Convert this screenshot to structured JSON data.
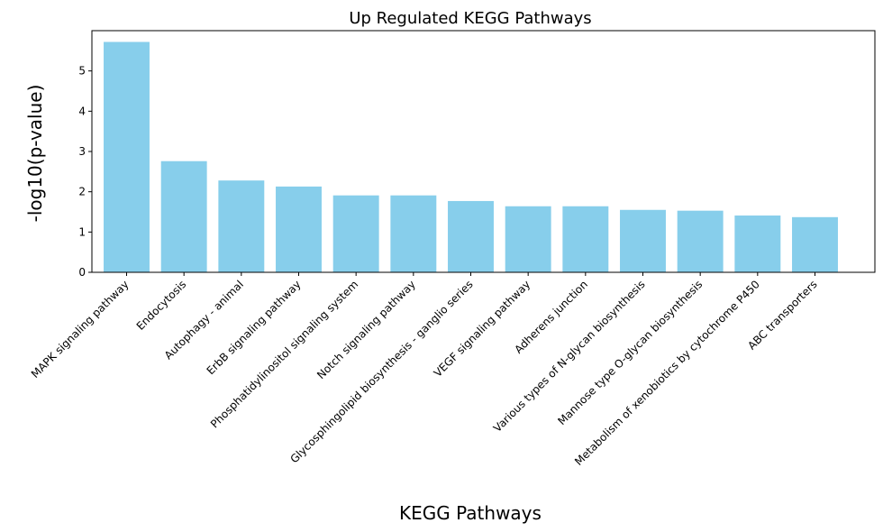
{
  "chart_data": {
    "type": "bar",
    "title": "Up Regulated KEGG Pathways",
    "xlabel": "KEGG Pathways",
    "ylabel": "-log10(p-value)",
    "categories": [
      "MAPK signaling pathway",
      "Endocytosis",
      "Autophagy - animal",
      "ErbB signaling pathway",
      "Phosphatidylinositol signaling system",
      "Notch signaling pathway",
      "Glycosphingolipid biosynthesis - ganglio series",
      "VEGF signaling pathway",
      "Adherens junction",
      "Various types of N-glycan biosynthesis",
      "Mannose type O-glycan biosynthesis",
      "Metabolism of xenobiotics by cytochrome P450",
      "ABC transporters"
    ],
    "values": [
      5.72,
      2.76,
      2.28,
      2.13,
      1.91,
      1.91,
      1.77,
      1.64,
      1.64,
      1.55,
      1.53,
      1.41,
      1.37
    ],
    "ylim": [
      0,
      6
    ],
    "yticks": [
      0,
      1,
      2,
      3,
      4,
      5
    ],
    "bar_color": "#87CEEB",
    "grid": false,
    "legend": "none"
  }
}
